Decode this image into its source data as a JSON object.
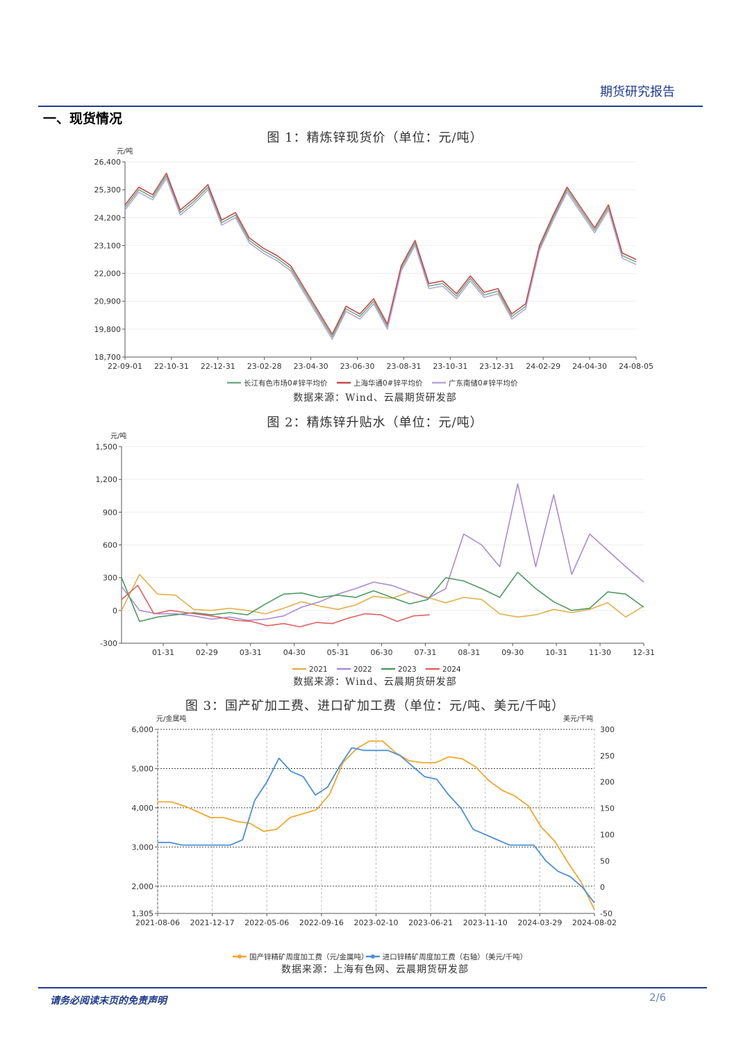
{
  "header": {
    "title": "期货研究报告"
  },
  "section": {
    "title": "一、现货情况"
  },
  "footer": {
    "disclaimer": "请务必阅读末页的免责声明",
    "page": "2/6"
  },
  "figures": [
    {
      "caption": "图 1：精炼锌现货价（单位：元/吨）",
      "source": "数据来源：Wind、云晨期货研发部"
    },
    {
      "caption": "图 2：精炼锌升贴水（单位：元/吨）",
      "source": "数据来源：Wind、云晨期货研发部"
    },
    {
      "caption": "图 3：国产矿加工费、进口矿加工费（单位：元/吨、美元/千吨）",
      "source": "数据来源：上海有色网、云晨期货研发部"
    }
  ],
  "chart_data": [
    {
      "type": "line",
      "y_unit": "元/吨",
      "ylim": [
        18700,
        26400
      ],
      "yticks": [
        "18,700",
        "19,800",
        "20,900",
        "22,000",
        "23,100",
        "24,200",
        "25,300",
        "26,400"
      ],
      "xticks": [
        "22-09-01",
        "22-10-31",
        "22-12-31",
        "23-02-28",
        "23-04-30",
        "23-06-30",
        "23-08-31",
        "23-10-31",
        "23-12-31",
        "24-02-29",
        "24-04-30",
        "24-08-05"
      ],
      "colors": [
        "#6fae87",
        "#c94848",
        "#b7a6dc"
      ],
      "series": [
        {
          "name": "长江有色市场0#锌平均价",
          "values": [
            24600,
            25300,
            25000,
            25850,
            24400,
            24850,
            25400,
            24000,
            24300,
            23300,
            22900,
            22600,
            22200,
            21300,
            20400,
            19500,
            20600,
            20300,
            20900,
            19900,
            22200,
            23200,
            21500,
            21600,
            21100,
            21800,
            21150,
            21300,
            20300,
            20700,
            23000,
            24200,
            25300,
            24500,
            23700,
            24600,
            22700,
            22450
          ]
        },
        {
          "name": "上海华通0#锌平均价",
          "values": [
            24700,
            25400,
            25100,
            25950,
            24500,
            24950,
            25500,
            24100,
            24400,
            23400,
            23000,
            22700,
            22300,
            21400,
            20500,
            19600,
            20700,
            20400,
            21000,
            20000,
            22300,
            23300,
            21600,
            21700,
            21200,
            21900,
            21250,
            21400,
            20400,
            20800,
            23100,
            24300,
            25400,
            24600,
            23800,
            24700,
            22800,
            22550
          ]
        },
        {
          "name": "广东南储0#锌平均价",
          "values": [
            24500,
            25200,
            24900,
            25750,
            24300,
            24750,
            25300,
            23900,
            24200,
            23200,
            22800,
            22500,
            22100,
            21200,
            20300,
            19400,
            20500,
            20200,
            20800,
            19800,
            22100,
            23100,
            21400,
            21500,
            21000,
            21700,
            21050,
            21200,
            20200,
            20600,
            22900,
            24100,
            25200,
            24400,
            23600,
            24500,
            22600,
            22350
          ]
        }
      ]
    },
    {
      "type": "line",
      "y_unit": "元/吨",
      "ylim": [
        -300,
        1500
      ],
      "yticks": [
        "-300",
        "0",
        "300",
        "600",
        "900",
        "1,200",
        "1,500"
      ],
      "xticks": [
        "01-31",
        "02-29",
        "03-31",
        "04-30",
        "05-31",
        "06-30",
        "07-31",
        "08-31",
        "09-30",
        "10-31",
        "11-30",
        "12-31"
      ],
      "colors": [
        "#e3b04b",
        "#a98ad6",
        "#4e9a62",
        "#e06060"
      ],
      "series": [
        {
          "name": "2021",
          "values": [
            0,
            330,
            150,
            140,
            10,
            0,
            20,
            0,
            -30,
            20,
            80,
            40,
            10,
            50,
            130,
            110,
            170,
            120,
            70,
            120,
            100,
            -30,
            -60,
            -40,
            10,
            -20,
            10,
            70,
            -60,
            40
          ]
        },
        {
          "name": "2022",
          "values": [
            220,
            0,
            -30,
            -30,
            -50,
            -80,
            -60,
            -90,
            -80,
            -50,
            30,
            80,
            150,
            200,
            260,
            230,
            170,
            110,
            200,
            700,
            600,
            400,
            1160,
            400,
            1060,
            330,
            700,
            550,
            400,
            260
          ]
        },
        {
          "name": "2023",
          "values": [
            300,
            -100,
            -60,
            -40,
            -20,
            -40,
            -20,
            -40,
            60,
            150,
            160,
            120,
            140,
            120,
            180,
            120,
            60,
            100,
            300,
            270,
            200,
            120,
            350,
            200,
            80,
            0,
            20,
            170,
            150,
            30
          ]
        },
        {
          "name": "2024",
          "values": [
            100,
            230,
            -30,
            0,
            -20,
            -40,
            -60,
            -90,
            -100,
            -140,
            -120,
            -150,
            -110,
            -120,
            -70,
            -30,
            -40,
            -100,
            -50,
            -40
          ]
        }
      ]
    },
    {
      "type": "line",
      "y_unit_left": "元/金属吨",
      "y_unit_right": "美元/千吨",
      "ylim_left": [
        1305,
        6000
      ],
      "ylim_right": [
        -50,
        300
      ],
      "yticks_left": [
        "1,305",
        "2,000",
        "3,000",
        "4,000",
        "5,000",
        "6,000"
      ],
      "yticks_right": [
        "-50",
        "0",
        "50",
        "100",
        "150",
        "200",
        "250",
        "300"
      ],
      "xticks": [
        "2021-08-06",
        "2021-12-17",
        "2022-05-06",
        "2022-09-16",
        "2023-02-10",
        "2023-06-21",
        "2023-11-10",
        "2024-03-29",
        "2024-08-02"
      ],
      "colors": [
        "#f0a830",
        "#4a90d9"
      ],
      "series": [
        {
          "name": "国产锌精矿周度加工费（元/金属吨）",
          "values": [
            4150,
            4150,
            4050,
            3900,
            3750,
            3750,
            3650,
            3600,
            3400,
            3450,
            3750,
            3850,
            3950,
            4350,
            5150,
            5500,
            5700,
            5700,
            5400,
            5200,
            5150,
            5150,
            5300,
            5250,
            5050,
            4700,
            4450,
            4300,
            4050,
            3500,
            3150,
            2600,
            2100,
            1400
          ]
        },
        {
          "name": "进口锌精矿周度加工费（右轴）（美元/千吨）",
          "values": [
            85,
            85,
            80,
            80,
            80,
            80,
            80,
            90,
            165,
            200,
            245,
            220,
            210,
            175,
            190,
            230,
            265,
            260,
            260,
            260,
            250,
            230,
            210,
            205,
            175,
            150,
            110,
            100,
            90,
            80,
            80,
            80,
            50,
            30,
            20,
            0,
            -30
          ]
        }
      ]
    }
  ]
}
